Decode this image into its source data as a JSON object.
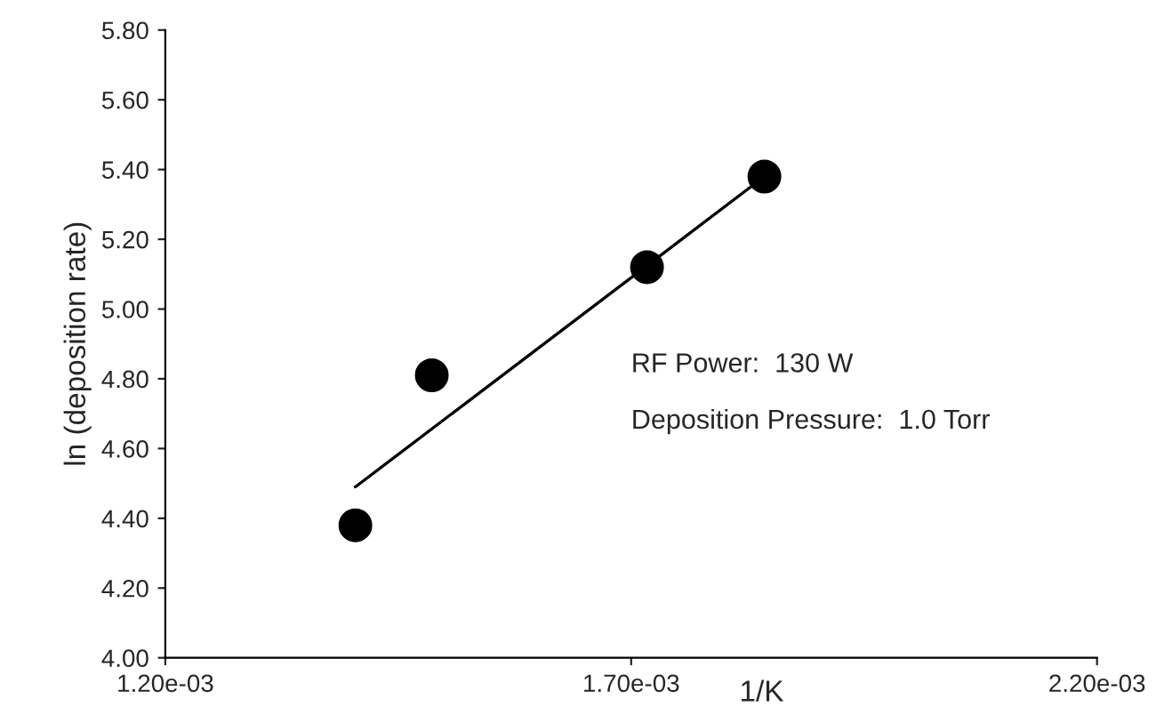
{
  "chart_data": {
    "type": "scatter",
    "xlabel": "1/K",
    "ylabel": "ln (deposition rate)",
    "series": [
      {
        "color": "#000000",
        "x": [
          0.001404,
          0.001486,
          0.001717,
          0.001843
        ],
        "values": [
          4.38,
          4.81,
          5.12,
          5.38
        ],
        "marker": "circle"
      },
      {
        "type": "line",
        "color": "#000000",
        "x": [
          0.001404,
          0.001843
        ],
        "values": [
          4.49,
          5.38
        ],
        "marker": "none"
      }
    ],
    "xlim": [
      0.0012,
      0.0022
    ],
    "xticks": [
      {
        "value": 0.0012,
        "label": "1.20e-03"
      },
      {
        "value": 0.0017,
        "label": "1.70e-03"
      },
      {
        "value": 0.0022,
        "label": "2.20e-03"
      }
    ],
    "ylim": [
      4.0,
      5.8
    ],
    "yticks": [
      {
        "value": 4.0,
        "label": "4.00"
      },
      {
        "value": 4.2,
        "label": "4.20"
      },
      {
        "value": 4.4,
        "label": "4.40"
      },
      {
        "value": 4.6,
        "label": "4.60"
      },
      {
        "value": 4.8,
        "label": "4.80"
      },
      {
        "value": 5.0,
        "label": "5.00"
      },
      {
        "value": 5.2,
        "label": "5.20"
      },
      {
        "value": 5.4,
        "label": "5.40"
      },
      {
        "value": 5.6,
        "label": "5.60"
      },
      {
        "value": 5.8,
        "label": "5.80"
      }
    ],
    "grid": false,
    "annotations": [
      "RF Power:  130 W",
      "Deposition Pressure:  1.0 Torr"
    ]
  }
}
